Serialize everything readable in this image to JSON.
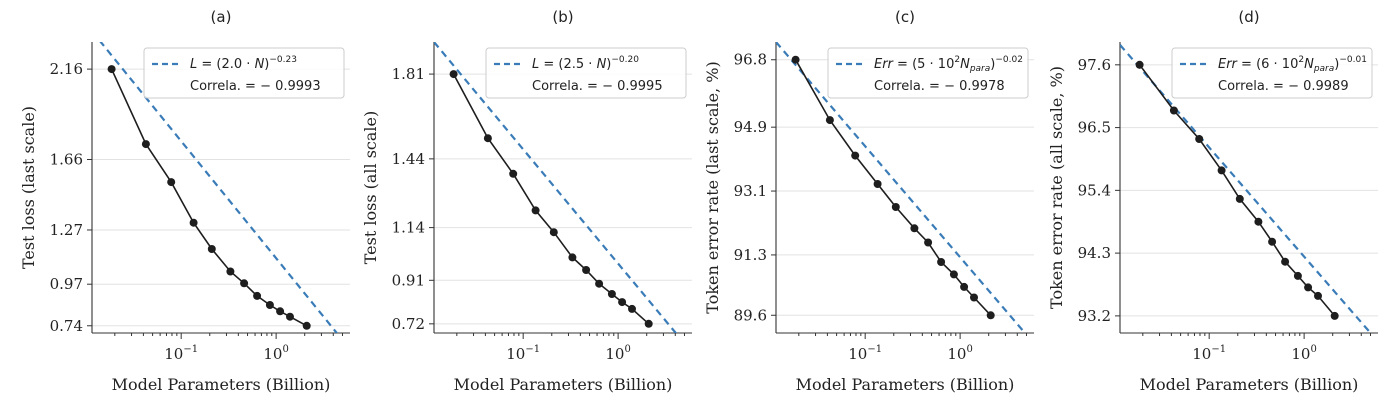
{
  "colors": {
    "fit": "#3a7cb8",
    "data": "#1e1e1e",
    "grid": "#e2e2e2",
    "legend_border": "#cccccc"
  },
  "chart_data": [
    {
      "type": "line",
      "title": "(a)",
      "xlabel": "Model Parameters (Billion)",
      "ylabel": "Test loss (last scale)",
      "xscale": "log",
      "xlim": [
        0.0115,
        6.0
      ],
      "ylim": [
        0.7,
        2.31
      ],
      "xticks": [
        0.1,
        1.0
      ],
      "xtick_labels": [
        {
          "base": "10",
          "exp": "−1"
        },
        {
          "base": "10",
          "exp": "0"
        }
      ],
      "yticks": [
        0.74,
        0.97,
        1.27,
        1.66,
        2.16
      ],
      "ytick_labels": [
        "0.74",
        "0.97",
        "1.27",
        "1.66",
        "2.16"
      ],
      "grid": "horizontal",
      "legend_position": "top-right",
      "fit_label": {
        "lhs": "L",
        "mid": " = (2.0 · ",
        "var": "N",
        "tail": ")",
        "exp": "−0.23"
      },
      "correlation_label": "Correla. = − 0.9993",
      "series": [
        {
          "name": "data",
          "x": [
            0.0185,
            0.0425,
            0.0785,
            0.135,
            0.21,
            0.33,
            0.46,
            0.63,
            0.86,
            1.1,
            1.4,
            2.1
          ],
          "y": [
            2.16,
            1.745,
            1.535,
            1.31,
            1.165,
            1.04,
            0.975,
            0.905,
            0.855,
            0.82,
            0.79,
            0.74
          ]
        },
        {
          "name": "fit",
          "style": "dashed",
          "x": [
            0.0115,
            6.0
          ],
          "y": [
            2.37,
            0.61
          ]
        }
      ]
    },
    {
      "type": "line",
      "title": "(b)",
      "xlabel": "Model Parameters (Billion)",
      "ylabel": "Test loss (all scale)",
      "xscale": "log",
      "xlim": [
        0.0115,
        6.0
      ],
      "ylim": [
        0.68,
        1.95
      ],
      "xticks": [
        0.1,
        1.0
      ],
      "xtick_labels": [
        {
          "base": "10",
          "exp": "−1"
        },
        {
          "base": "10",
          "exp": "0"
        }
      ],
      "yticks": [
        0.72,
        0.91,
        1.14,
        1.44,
        1.81
      ],
      "ytick_labels": [
        "0.72",
        "0.91",
        "1.14",
        "1.44",
        "1.81"
      ],
      "grid": "horizontal",
      "legend_position": "top-right",
      "fit_label": {
        "lhs": "L",
        "mid": " = (2.5 · ",
        "var": "N",
        "tail": ")",
        "exp": "−0.20"
      },
      "correlation_label": "Correla. = − 0.9995",
      "series": [
        {
          "name": "data",
          "x": [
            0.0185,
            0.0425,
            0.0785,
            0.135,
            0.21,
            0.33,
            0.46,
            0.63,
            0.86,
            1.1,
            1.4,
            2.1
          ],
          "y": [
            1.81,
            1.53,
            1.375,
            1.215,
            1.12,
            1.01,
            0.955,
            0.895,
            0.85,
            0.815,
            0.785,
            0.72
          ]
        },
        {
          "name": "fit",
          "style": "dashed",
          "x": [
            0.0115,
            6.0
          ],
          "y": [
            1.95,
            0.595
          ]
        }
      ]
    },
    {
      "type": "line",
      "title": "(c)",
      "xlabel": "Model Parameters (Billion)",
      "ylabel": "Token error rate (last scale, %)",
      "xscale": "log",
      "xlim": [
        0.0115,
        6.0
      ],
      "ylim": [
        89.1,
        97.3
      ],
      "xticks": [
        0.1,
        1.0
      ],
      "xtick_labels": [
        {
          "base": "10",
          "exp": "−1"
        },
        {
          "base": "10",
          "exp": "0"
        }
      ],
      "yticks": [
        89.6,
        91.3,
        93.1,
        94.9,
        96.8
      ],
      "ytick_labels": [
        "89.6",
        "91.3",
        "93.1",
        "94.9",
        "96.8"
      ],
      "grid": "horizontal",
      "legend_position": "top-right",
      "fit_label": {
        "lhs": "Err",
        "mid": " = (5 · 10",
        "mid_sup": "2",
        "var": "N",
        "var_sub": "para",
        "tail": ")",
        "exp": "−0.02"
      },
      "correlation_label": "Correla. = − 0.9978",
      "series": [
        {
          "name": "data",
          "x": [
            0.0185,
            0.0425,
            0.0785,
            0.135,
            0.21,
            0.33,
            0.46,
            0.63,
            0.86,
            1.1,
            1.4,
            2.1
          ],
          "y": [
            96.8,
            95.1,
            94.1,
            93.3,
            92.65,
            92.05,
            91.65,
            91.1,
            90.75,
            90.4,
            90.1,
            89.6
          ]
        },
        {
          "name": "fit",
          "style": "dashed",
          "x": [
            0.0115,
            6.0
          ],
          "y": [
            97.3,
            88.8
          ]
        }
      ]
    },
    {
      "type": "line",
      "title": "(d)",
      "xlabel": "Model Parameters (Billion)",
      "ylabel": "Token error rate (all scale, %)",
      "xscale": "log",
      "xlim": [
        0.0115,
        6.0
      ],
      "ylim": [
        92.9,
        98.0
      ],
      "xticks": [
        0.1,
        1.0
      ],
      "xtick_labels": [
        {
          "base": "10",
          "exp": "−1"
        },
        {
          "base": "10",
          "exp": "0"
        }
      ],
      "yticks": [
        93.2,
        94.3,
        95.4,
        96.5,
        97.6
      ],
      "ytick_labels": [
        "93.2",
        "94.3",
        "95.4",
        "96.5",
        "97.6"
      ],
      "grid": "horizontal",
      "legend_position": "top-right",
      "fit_label": {
        "lhs": "Err",
        "mid": " = (6 · 10",
        "mid_sup": "2",
        "var": "N",
        "var_sub": "para",
        "tail": ")",
        "exp": "−0.01"
      },
      "correlation_label": "Correla. = − 0.9989",
      "series": [
        {
          "name": "data",
          "x": [
            0.0185,
            0.0425,
            0.0785,
            0.135,
            0.21,
            0.33,
            0.46,
            0.63,
            0.86,
            1.1,
            1.4,
            2.1
          ],
          "y": [
            97.6,
            96.8,
            96.3,
            95.75,
            95.25,
            94.85,
            94.5,
            94.15,
            93.9,
            93.7,
            93.55,
            93.2
          ]
        },
        {
          "name": "fit",
          "style": "dashed",
          "x": [
            0.0115,
            6.0
          ],
          "y": [
            97.95,
            92.75
          ]
        }
      ]
    }
  ]
}
